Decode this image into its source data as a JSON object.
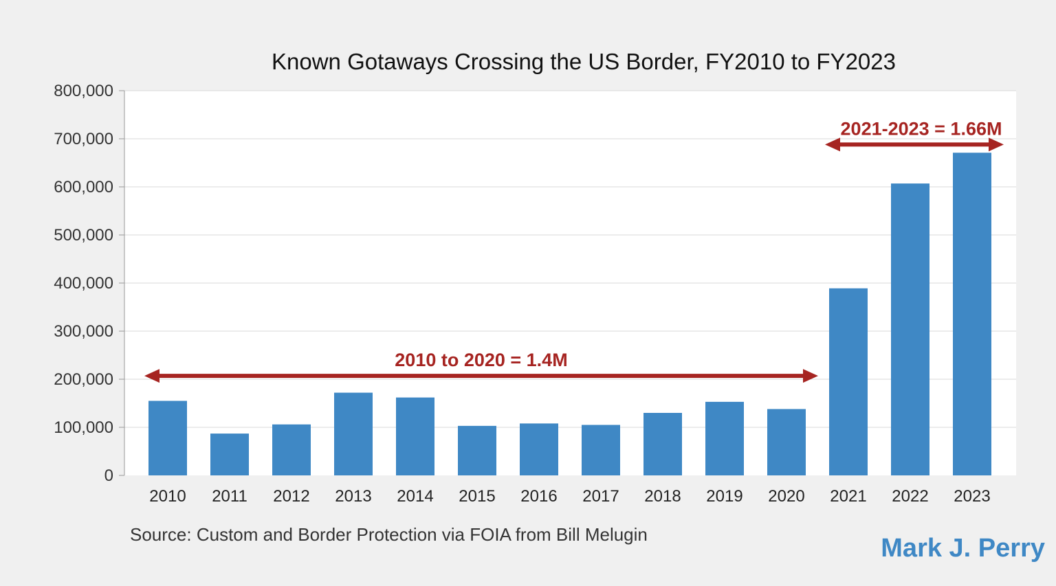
{
  "chart_data": {
    "type": "bar",
    "title": "Known Gotaways Crossing the US Border, FY2010 to FY2023",
    "xlabel": "",
    "ylabel": "",
    "ylim": [
      0,
      800000
    ],
    "yticks": [
      0,
      100000,
      200000,
      300000,
      400000,
      500000,
      600000,
      700000,
      800000
    ],
    "ytick_labels": [
      "0",
      "100,000",
      "200,000",
      "300,000",
      "400,000",
      "500,000",
      "600,000",
      "700,000",
      "800,000"
    ],
    "categories": [
      "2010",
      "2011",
      "2012",
      "2013",
      "2014",
      "2015",
      "2016",
      "2017",
      "2018",
      "2019",
      "2020",
      "2021",
      "2022",
      "2023"
    ],
    "values": [
      155000,
      87000,
      106000,
      172000,
      162000,
      103000,
      108000,
      105000,
      130000,
      153000,
      138000,
      389000,
      607000,
      671000
    ],
    "grid": true,
    "bar_color": "#3f88c5",
    "annotations": [
      {
        "label": "2010 to 2020 = 1.4M",
        "from": "2010",
        "to": "2020",
        "y": 207000,
        "color": "#a62421"
      },
      {
        "label": "2021-2023 = 1.66M",
        "from": "2021",
        "to": "2023",
        "y": 688000,
        "color": "#a62421"
      }
    ],
    "source": "Source: Custom and Border Protection via FOIA from Bill Melugin",
    "credit": "Mark J. Perry",
    "credit_color": "#3f88c5"
  }
}
